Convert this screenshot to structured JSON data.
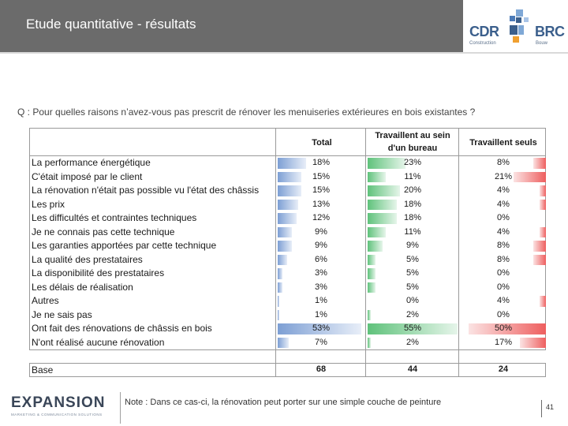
{
  "header": {
    "title": "Etude quantitative - résultats"
  },
  "logo": {
    "left_text": "CDR",
    "right_text": "BRC",
    "left_sub": "Construction",
    "right_sub": "Bouw"
  },
  "question": "Q : Pour quelles raisons n’avez-vous pas prescrit de rénover les menuiseries extérieures en bois existantes ?",
  "table": {
    "columns": [
      "Total",
      "Travaillent au sein d'un bureau",
      "Travaillent seuls"
    ],
    "rows": [
      {
        "label": "La performance énergétique",
        "total": "18%",
        "bureau": "23%",
        "seuls": "8%"
      },
      {
        "label": "C'était imposé par le client",
        "total": "15%",
        "bureau": "11%",
        "seuls": "21%"
      },
      {
        "label": "La rénovation n'était pas possible vu l'état des châssis",
        "total": "15%",
        "bureau": "20%",
        "seuls": "4%"
      },
      {
        "label": "Les prix",
        "total": "13%",
        "bureau": "18%",
        "seuls": "4%"
      },
      {
        "label": "Les difficultés et contraintes techniques",
        "total": "12%",
        "bureau": "18%",
        "seuls": "0%"
      },
      {
        "label": "Je ne connais pas cette technique",
        "total": "9%",
        "bureau": "11%",
        "seuls": "4%"
      },
      {
        "label": "Les garanties apportées par cette technique",
        "total": "9%",
        "bureau": "9%",
        "seuls": "8%"
      },
      {
        "label": "La qualité des prestataires",
        "total": "6%",
        "bureau": "5%",
        "seuls": "8%"
      },
      {
        "label": "La disponibilité des prestataires",
        "total": "3%",
        "bureau": "5%",
        "seuls": "0%"
      },
      {
        "label": "Les délais de réalisation",
        "total": "3%",
        "bureau": "5%",
        "seuls": "0%"
      },
      {
        "label": "Autres",
        "total": "1%",
        "bureau": "0%",
        "seuls": "4%"
      },
      {
        "label": "Je ne sais pas",
        "total": "1%",
        "bureau": "2%",
        "seuls": "0%"
      },
      {
        "label": "Ont fait des rénovations de châssis en bois",
        "total": "53%",
        "bureau": "55%",
        "seuls": "50%"
      },
      {
        "label": "N'ont réalisé aucune rénovation",
        "total": "7%",
        "bureau": "2%",
        "seuls": "17%"
      }
    ],
    "base": {
      "label": "Base",
      "total": "68",
      "bureau": "44",
      "seuls": "24"
    }
  },
  "footer": {
    "brand": "EXPANSION",
    "brand_sub": "MARKETING & COMMUNICATION SOLUTIONS",
    "note": "Note : Dans ce cas-ci, la rénovation peut porter sur une simple couche de peinture",
    "page_number": "41"
  },
  "colors": {
    "header_bg": "#6b6b6b",
    "total_bar": "#7d9fd4",
    "bureau_bar": "#5fc27b",
    "seuls_bar": "#ee5f5f",
    "logo_blue": "#3b5f8c"
  }
}
